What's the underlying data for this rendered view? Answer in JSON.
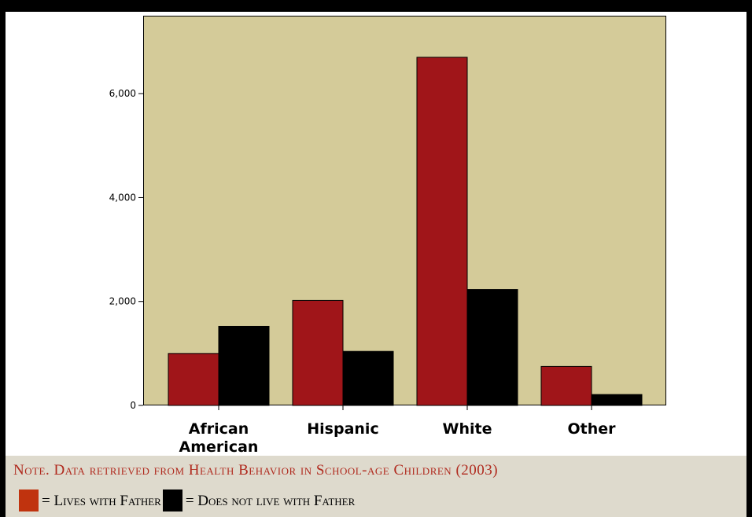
{
  "chart_data": {
    "type": "bar",
    "categories": [
      [
        "African",
        "American"
      ],
      [
        "Hispanic"
      ],
      [
        "White"
      ],
      [
        "Other"
      ]
    ],
    "series": [
      {
        "name": "Lives with Father",
        "color": "#a01519",
        "values": [
          1000,
          2020,
          6700,
          750
        ]
      },
      {
        "name": "Does not live with Father",
        "color": "#000000",
        "values": [
          1520,
          1040,
          2230,
          210
        ]
      }
    ],
    "ylim": [
      0,
      7500
    ],
    "yticks": [
      0,
      2000,
      4000,
      6000
    ],
    "ytick_labels": [
      "0",
      "2,000",
      "4,000",
      "6,000"
    ],
    "plot_background": "#d4cb99",
    "grid": false
  },
  "note": "Note. Data retrieved from Health Behavior in School-age Children (2003)",
  "legend": {
    "items": [
      {
        "label": "= Lives with Father",
        "swatch_color": "#c0330e"
      },
      {
        "label": "= Does not live with Father",
        "swatch_color": "#000000"
      }
    ]
  }
}
